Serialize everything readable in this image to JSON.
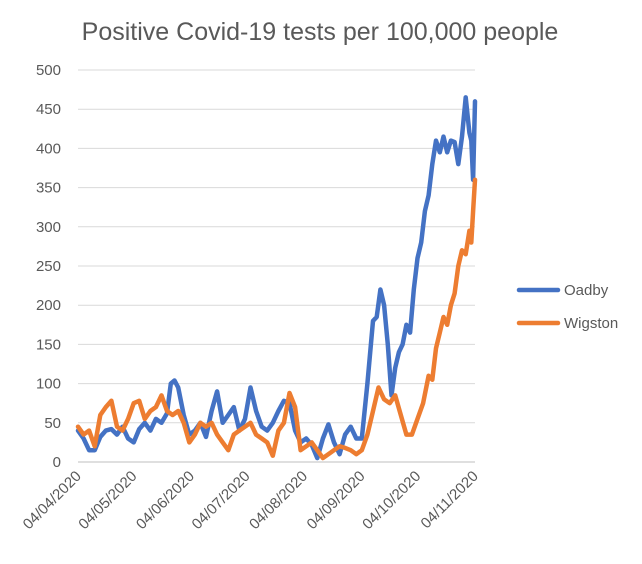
{
  "chart_data": {
    "type": "line",
    "title": "Positive Covid-19 tests per 100,000 people",
    "xlabel": "",
    "ylabel": "",
    "ylim": [
      0,
      500
    ],
    "yticks": [
      0,
      50,
      100,
      150,
      200,
      250,
      300,
      350,
      400,
      450,
      500
    ],
    "xlim": [
      "2020-04-04",
      "2020-11-04"
    ],
    "xtick_labels": [
      "04/04/2020",
      "04/05/2020",
      "04/06/2020",
      "04/07/2020",
      "04/08/2020",
      "04/09/2020",
      "04/10/2020",
      "04/11/2020"
    ],
    "grid": "horizontal",
    "legend_position": "right",
    "series": [
      {
        "name": "Oadby",
        "color": "#4472C4",
        "points": [
          [
            "2020-04-04",
            40
          ],
          [
            "2020-04-07",
            30
          ],
          [
            "2020-04-10",
            15
          ],
          [
            "2020-04-13",
            15
          ],
          [
            "2020-04-16",
            32
          ],
          [
            "2020-04-19",
            40
          ],
          [
            "2020-04-22",
            42
          ],
          [
            "2020-04-25",
            35
          ],
          [
            "2020-04-28",
            45
          ],
          [
            "2020-05-01",
            30
          ],
          [
            "2020-05-04",
            25
          ],
          [
            "2020-05-07",
            42
          ],
          [
            "2020-05-10",
            50
          ],
          [
            "2020-05-13",
            40
          ],
          [
            "2020-05-16",
            55
          ],
          [
            "2020-05-19",
            50
          ],
          [
            "2020-05-22",
            62
          ],
          [
            "2020-05-24",
            100
          ],
          [
            "2020-05-26",
            104
          ],
          [
            "2020-05-28",
            95
          ],
          [
            "2020-05-31",
            60
          ],
          [
            "2020-06-03",
            35
          ],
          [
            "2020-06-06",
            40
          ],
          [
            "2020-06-09",
            50
          ],
          [
            "2020-06-12",
            32
          ],
          [
            "2020-06-15",
            65
          ],
          [
            "2020-06-18",
            90
          ],
          [
            "2020-06-21",
            50
          ],
          [
            "2020-06-24",
            60
          ],
          [
            "2020-06-27",
            70
          ],
          [
            "2020-06-30",
            40
          ],
          [
            "2020-07-03",
            55
          ],
          [
            "2020-07-06",
            95
          ],
          [
            "2020-07-09",
            65
          ],
          [
            "2020-07-12",
            45
          ],
          [
            "2020-07-15",
            40
          ],
          [
            "2020-07-18",
            50
          ],
          [
            "2020-07-21",
            65
          ],
          [
            "2020-07-24",
            78
          ],
          [
            "2020-07-27",
            75
          ],
          [
            "2020-07-30",
            40
          ],
          [
            "2020-08-02",
            25
          ],
          [
            "2020-08-05",
            30
          ],
          [
            "2020-08-08",
            22
          ],
          [
            "2020-08-11",
            5
          ],
          [
            "2020-08-14",
            30
          ],
          [
            "2020-08-17",
            48
          ],
          [
            "2020-08-20",
            25
          ],
          [
            "2020-08-23",
            10
          ],
          [
            "2020-08-26",
            35
          ],
          [
            "2020-08-29",
            45
          ],
          [
            "2020-09-01",
            30
          ],
          [
            "2020-09-04",
            30
          ],
          [
            "2020-09-07",
            100
          ],
          [
            "2020-09-10",
            180
          ],
          [
            "2020-09-12",
            185
          ],
          [
            "2020-09-14",
            220
          ],
          [
            "2020-09-16",
            200
          ],
          [
            "2020-09-18",
            150
          ],
          [
            "2020-09-20",
            85
          ],
          [
            "2020-09-22",
            120
          ],
          [
            "2020-09-24",
            140
          ],
          [
            "2020-09-26",
            150
          ],
          [
            "2020-09-28",
            175
          ],
          [
            "2020-09-30",
            165
          ],
          [
            "2020-10-02",
            220
          ],
          [
            "2020-10-04",
            260
          ],
          [
            "2020-10-06",
            280
          ],
          [
            "2020-10-08",
            320
          ],
          [
            "2020-10-10",
            340
          ],
          [
            "2020-10-12",
            380
          ],
          [
            "2020-10-14",
            410
          ],
          [
            "2020-10-16",
            395
          ],
          [
            "2020-10-18",
            415
          ],
          [
            "2020-10-20",
            395
          ],
          [
            "2020-10-22",
            410
          ],
          [
            "2020-10-24",
            408
          ],
          [
            "2020-10-26",
            380
          ],
          [
            "2020-10-28",
            415
          ],
          [
            "2020-10-30",
            465
          ],
          [
            "2020-11-01",
            420
          ],
          [
            "2020-11-02",
            410
          ],
          [
            "2020-11-03",
            360
          ],
          [
            "2020-11-04",
            460
          ]
        ]
      },
      {
        "name": "Wigston",
        "color": "#ED7D31",
        "points": [
          [
            "2020-04-04",
            45
          ],
          [
            "2020-04-07",
            35
          ],
          [
            "2020-04-10",
            40
          ],
          [
            "2020-04-13",
            20
          ],
          [
            "2020-04-16",
            60
          ],
          [
            "2020-04-19",
            70
          ],
          [
            "2020-04-22",
            78
          ],
          [
            "2020-04-25",
            45
          ],
          [
            "2020-04-28",
            40
          ],
          [
            "2020-05-01",
            55
          ],
          [
            "2020-05-04",
            75
          ],
          [
            "2020-05-07",
            78
          ],
          [
            "2020-05-10",
            55
          ],
          [
            "2020-05-13",
            65
          ],
          [
            "2020-05-16",
            70
          ],
          [
            "2020-05-19",
            85
          ],
          [
            "2020-05-22",
            65
          ],
          [
            "2020-05-25",
            60
          ],
          [
            "2020-05-28",
            65
          ],
          [
            "2020-05-31",
            50
          ],
          [
            "2020-06-03",
            25
          ],
          [
            "2020-06-06",
            35
          ],
          [
            "2020-06-09",
            50
          ],
          [
            "2020-06-12",
            45
          ],
          [
            "2020-06-15",
            50
          ],
          [
            "2020-06-18",
            35
          ],
          [
            "2020-06-21",
            25
          ],
          [
            "2020-06-24",
            15
          ],
          [
            "2020-06-27",
            35
          ],
          [
            "2020-06-30",
            40
          ],
          [
            "2020-07-03",
            45
          ],
          [
            "2020-07-06",
            50
          ],
          [
            "2020-07-09",
            35
          ],
          [
            "2020-07-12",
            30
          ],
          [
            "2020-07-15",
            25
          ],
          [
            "2020-07-18",
            8
          ],
          [
            "2020-07-21",
            40
          ],
          [
            "2020-07-24",
            50
          ],
          [
            "2020-07-27",
            88
          ],
          [
            "2020-07-30",
            70
          ],
          [
            "2020-08-02",
            15
          ],
          [
            "2020-08-05",
            20
          ],
          [
            "2020-08-08",
            25
          ],
          [
            "2020-08-11",
            15
          ],
          [
            "2020-08-14",
            5
          ],
          [
            "2020-08-17",
            10
          ],
          [
            "2020-08-20",
            15
          ],
          [
            "2020-08-23",
            20
          ],
          [
            "2020-08-26",
            18
          ],
          [
            "2020-08-29",
            15
          ],
          [
            "2020-09-01",
            10
          ],
          [
            "2020-09-04",
            15
          ],
          [
            "2020-09-07",
            35
          ],
          [
            "2020-09-10",
            65
          ],
          [
            "2020-09-13",
            95
          ],
          [
            "2020-09-16",
            80
          ],
          [
            "2020-09-19",
            75
          ],
          [
            "2020-09-22",
            85
          ],
          [
            "2020-09-25",
            60
          ],
          [
            "2020-09-28",
            35
          ],
          [
            "2020-10-01",
            35
          ],
          [
            "2020-10-04",
            55
          ],
          [
            "2020-10-07",
            75
          ],
          [
            "2020-10-10",
            110
          ],
          [
            "2020-10-12",
            105
          ],
          [
            "2020-10-14",
            145
          ],
          [
            "2020-10-16",
            165
          ],
          [
            "2020-10-18",
            185
          ],
          [
            "2020-10-20",
            175
          ],
          [
            "2020-10-22",
            200
          ],
          [
            "2020-10-24",
            215
          ],
          [
            "2020-10-26",
            250
          ],
          [
            "2020-10-28",
            270
          ],
          [
            "2020-10-30",
            265
          ],
          [
            "2020-11-01",
            295
          ],
          [
            "2020-11-02",
            280
          ],
          [
            "2020-11-03",
            320
          ],
          [
            "2020-11-04",
            360
          ]
        ]
      }
    ]
  }
}
